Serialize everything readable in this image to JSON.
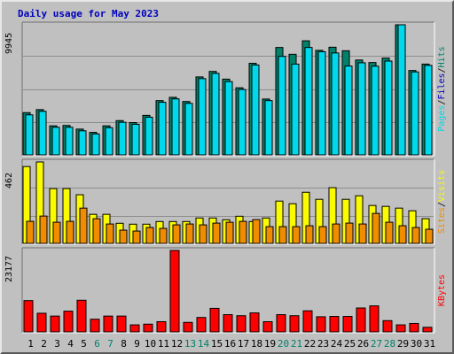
{
  "title": "Daily usage for May 2023",
  "colors": {
    "hits": "#00d8ec",
    "files": "#00826a",
    "sites": "#f08c00",
    "visits": "#fafa00",
    "kbytes": "#ff0000",
    "title_text": "#0000c0",
    "weekend_text": "#00826a",
    "weekday_text": "#000000"
  },
  "legend": {
    "pages": "Pages",
    "files": "Files",
    "hits": "Hits",
    "sites": "Sites",
    "visits": "Visits",
    "kbytes": "KBytes",
    "sep": "/"
  },
  "chart_data": [
    {
      "type": "bar",
      "name": "hits-files-pages",
      "ymax_label": "9945",
      "ylim": [
        0,
        9945
      ],
      "grid": true,
      "categories": [
        "1",
        "2",
        "3",
        "4",
        "5",
        "6",
        "7",
        "8",
        "9",
        "10",
        "11",
        "12",
        "13",
        "14",
        "15",
        "16",
        "17",
        "18",
        "19",
        "20",
        "21",
        "22",
        "23",
        "24",
        "25",
        "26",
        "27",
        "28",
        "29",
        "30",
        "31"
      ],
      "weekend_days": [
        6,
        7,
        13,
        14,
        20,
        21,
        27,
        28
      ],
      "series": [
        {
          "name": "Files",
          "values": [
            3230,
            3460,
            2220,
            2250,
            1970,
            1720,
            2220,
            2620,
            2470,
            3020,
            4150,
            4400,
            4080,
            5960,
            6380,
            5790,
            5130,
            7000,
            4270,
            8210,
            7690,
            8720,
            7990,
            8230,
            7960,
            7250,
            7060,
            7400,
            9945,
            6450,
            6940
          ]
        },
        {
          "name": "Hits",
          "values": [
            3060,
            3330,
            2110,
            2110,
            1840,
            1600,
            2080,
            2490,
            2340,
            2880,
            4020,
            4280,
            3940,
            5830,
            6230,
            5600,
            5000,
            6870,
            4150,
            7530,
            6940,
            8210,
            7890,
            7790,
            6790,
            7040,
            6780,
            7170,
            9945,
            6340,
            6840
          ]
        },
        {
          "name": "Pages",
          "values": [
            0,
            0,
            0,
            0,
            0,
            0,
            0,
            0,
            0,
            0,
            0,
            0,
            0,
            0,
            0,
            0,
            0,
            0,
            0,
            0,
            0,
            0,
            0,
            0,
            0,
            0,
            0,
            0,
            0,
            0,
            0
          ]
        }
      ]
    },
    {
      "type": "bar",
      "name": "visits-sites",
      "ymax_label": "462",
      "ylim": [
        0,
        462
      ],
      "grid": true,
      "series": [
        {
          "name": "Visits",
          "values": [
            436,
            462,
            311,
            311,
            276,
            165,
            165,
            114,
            109,
            109,
            124,
            124,
            124,
            144,
            144,
            134,
            154,
            124,
            144,
            240,
            225,
            290,
            250,
            316,
            250,
            270,
            215,
            210,
            200,
            185,
            140
          ]
        },
        {
          "name": "Sites",
          "values": [
            125,
            155,
            120,
            125,
            200,
            140,
            110,
            75,
            70,
            90,
            85,
            105,
            110,
            105,
            115,
            120,
            125,
            135,
            95,
            95,
            95,
            100,
            95,
            110,
            115,
            110,
            170,
            120,
            100,
            90,
            80
          ]
        }
      ]
    },
    {
      "type": "bar",
      "name": "kbytes",
      "ymax_label": "23177",
      "ylim": [
        0,
        23177
      ],
      "grid": false,
      "series": [
        {
          "name": "KBytes",
          "values": [
            8900,
            5300,
            4500,
            5900,
            9000,
            3600,
            4500,
            4500,
            2000,
            2200,
            2900,
            23177,
            2700,
            4100,
            6700,
            4900,
            4600,
            5400,
            2900,
            4900,
            4600,
            6000,
            4300,
            4400,
            4400,
            6800,
            7400,
            3200,
            2000,
            2400,
            1300
          ]
        }
      ]
    }
  ]
}
